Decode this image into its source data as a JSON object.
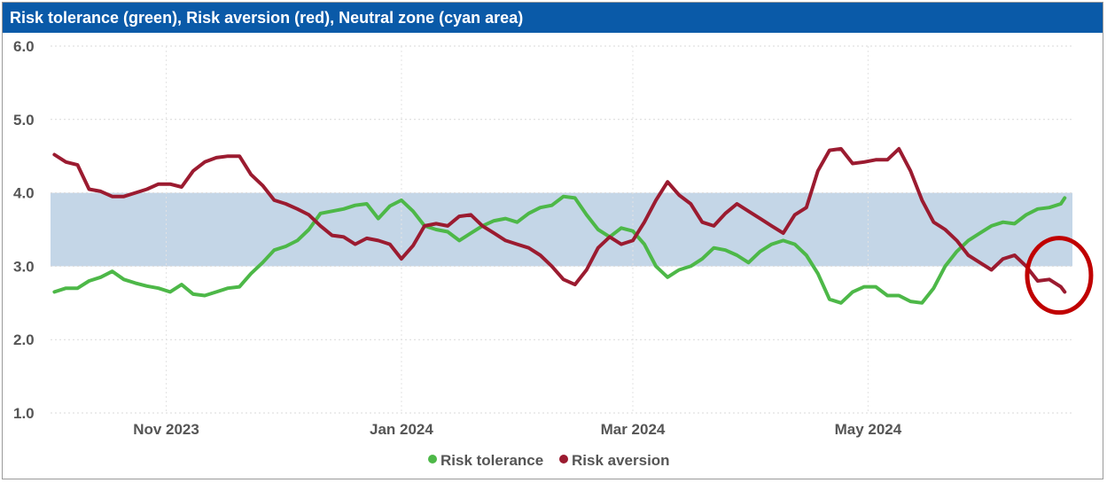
{
  "title": "Risk tolerance (green), Risk aversion (red), Neutral zone (cyan area)",
  "colors": {
    "title_bg": "#0a5aa8",
    "tolerance": "#4db848",
    "aversion": "#9b1b30",
    "neutral_zone": "#c4d6e7",
    "highlight_circle": "#c00000"
  },
  "chart_data": {
    "type": "line",
    "title": "Risk tolerance (green), Risk aversion (red), Neutral zone (cyan area)",
    "xlim": [
      "2023-10-02",
      "2024-06-23"
    ],
    "ylim": [
      1.0,
      6.0
    ],
    "y_ticks": [
      "6.0",
      "5.0",
      "4.0",
      "3.0",
      "2.0",
      "1.0"
    ],
    "y_tick_values": [
      6,
      5,
      4,
      3,
      2,
      1
    ],
    "x_ticks": [
      {
        "label": "Nov 2023",
        "date": "2023-11-01"
      },
      {
        "label": "Jan 2024",
        "date": "2024-01-01"
      },
      {
        "label": "Mar 2024",
        "date": "2024-03-01"
      },
      {
        "label": "May 2024",
        "date": "2024-05-01"
      }
    ],
    "grid": true,
    "legend_position": "bottom-center",
    "neutral_zone": [
      3.0,
      4.0
    ],
    "annotation": {
      "shape": "circle",
      "date": "2024-06-20",
      "value": 2.9
    },
    "series": [
      {
        "name": "Risk tolerance",
        "color": "#4db848",
        "points": [
          [
            "2023-10-03",
            2.65
          ],
          [
            "2023-10-06",
            2.7
          ],
          [
            "2023-10-09",
            2.7
          ],
          [
            "2023-10-12",
            2.8
          ],
          [
            "2023-10-15",
            2.85
          ],
          [
            "2023-10-18",
            2.93
          ],
          [
            "2023-10-21",
            2.82
          ],
          [
            "2023-10-24",
            2.77
          ],
          [
            "2023-10-27",
            2.73
          ],
          [
            "2023-10-30",
            2.7
          ],
          [
            "2023-11-02",
            2.65
          ],
          [
            "2023-11-05",
            2.75
          ],
          [
            "2023-11-08",
            2.62
          ],
          [
            "2023-11-11",
            2.6
          ],
          [
            "2023-11-14",
            2.65
          ],
          [
            "2023-11-17",
            2.7
          ],
          [
            "2023-11-20",
            2.72
          ],
          [
            "2023-11-23",
            2.9
          ],
          [
            "2023-11-26",
            3.05
          ],
          [
            "2023-11-29",
            3.22
          ],
          [
            "2023-12-02",
            3.27
          ],
          [
            "2023-12-05",
            3.35
          ],
          [
            "2023-12-08",
            3.5
          ],
          [
            "2023-12-11",
            3.72
          ],
          [
            "2023-12-14",
            3.75
          ],
          [
            "2023-12-17",
            3.78
          ],
          [
            "2023-12-20",
            3.83
          ],
          [
            "2023-12-23",
            3.85
          ],
          [
            "2023-12-26",
            3.65
          ],
          [
            "2023-12-29",
            3.82
          ],
          [
            "2024-01-01",
            3.9
          ],
          [
            "2024-01-04",
            3.75
          ],
          [
            "2024-01-07",
            3.55
          ],
          [
            "2024-01-10",
            3.5
          ],
          [
            "2024-01-13",
            3.47
          ],
          [
            "2024-01-16",
            3.35
          ],
          [
            "2024-01-19",
            3.45
          ],
          [
            "2024-01-22",
            3.55
          ],
          [
            "2024-01-25",
            3.62
          ],
          [
            "2024-01-28",
            3.65
          ],
          [
            "2024-01-31",
            3.6
          ],
          [
            "2024-02-03",
            3.72
          ],
          [
            "2024-02-06",
            3.8
          ],
          [
            "2024-02-09",
            3.83
          ],
          [
            "2024-02-12",
            3.95
          ],
          [
            "2024-02-15",
            3.93
          ],
          [
            "2024-02-18",
            3.7
          ],
          [
            "2024-02-21",
            3.5
          ],
          [
            "2024-02-24",
            3.4
          ],
          [
            "2024-02-27",
            3.52
          ],
          [
            "2024-03-01",
            3.48
          ],
          [
            "2024-03-04",
            3.3
          ],
          [
            "2024-03-07",
            3.0
          ],
          [
            "2024-03-10",
            2.85
          ],
          [
            "2024-03-13",
            2.95
          ],
          [
            "2024-03-16",
            3.0
          ],
          [
            "2024-03-19",
            3.1
          ],
          [
            "2024-03-22",
            3.25
          ],
          [
            "2024-03-25",
            3.22
          ],
          [
            "2024-03-28",
            3.15
          ],
          [
            "2024-03-31",
            3.05
          ],
          [
            "2024-04-03",
            3.2
          ],
          [
            "2024-04-06",
            3.3
          ],
          [
            "2024-04-09",
            3.35
          ],
          [
            "2024-04-12",
            3.3
          ],
          [
            "2024-04-15",
            3.15
          ],
          [
            "2024-04-18",
            2.9
          ],
          [
            "2024-04-21",
            2.55
          ],
          [
            "2024-04-24",
            2.5
          ],
          [
            "2024-04-27",
            2.65
          ],
          [
            "2024-04-30",
            2.72
          ],
          [
            "2024-05-03",
            2.72
          ],
          [
            "2024-05-06",
            2.6
          ],
          [
            "2024-05-09",
            2.6
          ],
          [
            "2024-05-12",
            2.52
          ],
          [
            "2024-05-15",
            2.5
          ],
          [
            "2024-05-18",
            2.7
          ],
          [
            "2024-05-21",
            3.0
          ],
          [
            "2024-05-24",
            3.2
          ],
          [
            "2024-05-27",
            3.35
          ],
          [
            "2024-05-30",
            3.45
          ],
          [
            "2024-06-02",
            3.55
          ],
          [
            "2024-06-05",
            3.6
          ],
          [
            "2024-06-08",
            3.58
          ],
          [
            "2024-06-11",
            3.7
          ],
          [
            "2024-06-14",
            3.78
          ],
          [
            "2024-06-17",
            3.8
          ],
          [
            "2024-06-20",
            3.85
          ],
          [
            "2024-06-21",
            3.93
          ]
        ]
      },
      {
        "name": "Risk aversion",
        "color": "#9b1b30",
        "points": [
          [
            "2023-10-03",
            4.52
          ],
          [
            "2023-10-06",
            4.42
          ],
          [
            "2023-10-09",
            4.38
          ],
          [
            "2023-10-12",
            4.05
          ],
          [
            "2023-10-15",
            4.02
          ],
          [
            "2023-10-18",
            3.95
          ],
          [
            "2023-10-21",
            3.95
          ],
          [
            "2023-10-24",
            4.0
          ],
          [
            "2023-10-27",
            4.05
          ],
          [
            "2023-10-30",
            4.12
          ],
          [
            "2023-11-02",
            4.12
          ],
          [
            "2023-11-05",
            4.08
          ],
          [
            "2023-11-08",
            4.3
          ],
          [
            "2023-11-11",
            4.42
          ],
          [
            "2023-11-14",
            4.48
          ],
          [
            "2023-11-17",
            4.5
          ],
          [
            "2023-11-20",
            4.5
          ],
          [
            "2023-11-23",
            4.25
          ],
          [
            "2023-11-26",
            4.1
          ],
          [
            "2023-11-29",
            3.9
          ],
          [
            "2023-12-02",
            3.85
          ],
          [
            "2023-12-05",
            3.78
          ],
          [
            "2023-12-08",
            3.7
          ],
          [
            "2023-12-11",
            3.55
          ],
          [
            "2023-12-14",
            3.42
          ],
          [
            "2023-12-17",
            3.4
          ],
          [
            "2023-12-20",
            3.3
          ],
          [
            "2023-12-23",
            3.38
          ],
          [
            "2023-12-26",
            3.35
          ],
          [
            "2023-12-29",
            3.3
          ],
          [
            "2024-01-01",
            3.1
          ],
          [
            "2024-01-04",
            3.28
          ],
          [
            "2024-01-07",
            3.55
          ],
          [
            "2024-01-10",
            3.58
          ],
          [
            "2024-01-13",
            3.55
          ],
          [
            "2024-01-16",
            3.68
          ],
          [
            "2024-01-19",
            3.7
          ],
          [
            "2024-01-22",
            3.55
          ],
          [
            "2024-01-25",
            3.45
          ],
          [
            "2024-01-28",
            3.35
          ],
          [
            "2024-01-31",
            3.3
          ],
          [
            "2024-02-03",
            3.25
          ],
          [
            "2024-02-06",
            3.15
          ],
          [
            "2024-02-09",
            3.0
          ],
          [
            "2024-02-12",
            2.82
          ],
          [
            "2024-02-15",
            2.75
          ],
          [
            "2024-02-18",
            2.95
          ],
          [
            "2024-02-21",
            3.25
          ],
          [
            "2024-02-24",
            3.4
          ],
          [
            "2024-02-27",
            3.3
          ],
          [
            "2024-03-01",
            3.35
          ],
          [
            "2024-03-04",
            3.6
          ],
          [
            "2024-03-07",
            3.9
          ],
          [
            "2024-03-10",
            4.15
          ],
          [
            "2024-03-13",
            3.97
          ],
          [
            "2024-03-16",
            3.85
          ],
          [
            "2024-03-19",
            3.6
          ],
          [
            "2024-03-22",
            3.55
          ],
          [
            "2024-03-25",
            3.72
          ],
          [
            "2024-03-28",
            3.85
          ],
          [
            "2024-03-31",
            3.75
          ],
          [
            "2024-04-03",
            3.65
          ],
          [
            "2024-04-06",
            3.55
          ],
          [
            "2024-04-09",
            3.45
          ],
          [
            "2024-04-12",
            3.7
          ],
          [
            "2024-04-15",
            3.8
          ],
          [
            "2024-04-18",
            4.3
          ],
          [
            "2024-04-21",
            4.58
          ],
          [
            "2024-04-24",
            4.6
          ],
          [
            "2024-04-27",
            4.4
          ],
          [
            "2024-04-30",
            4.42
          ],
          [
            "2024-05-03",
            4.45
          ],
          [
            "2024-05-06",
            4.45
          ],
          [
            "2024-05-09",
            4.6
          ],
          [
            "2024-05-12",
            4.3
          ],
          [
            "2024-05-15",
            3.9
          ],
          [
            "2024-05-18",
            3.6
          ],
          [
            "2024-05-21",
            3.5
          ],
          [
            "2024-05-24",
            3.35
          ],
          [
            "2024-05-27",
            3.15
          ],
          [
            "2024-05-30",
            3.05
          ],
          [
            "2024-06-02",
            2.95
          ],
          [
            "2024-06-05",
            3.1
          ],
          [
            "2024-06-08",
            3.15
          ],
          [
            "2024-06-11",
            3.0
          ],
          [
            "2024-06-14",
            2.8
          ],
          [
            "2024-06-17",
            2.82
          ],
          [
            "2024-06-20",
            2.72
          ],
          [
            "2024-06-21",
            2.65
          ]
        ]
      }
    ]
  }
}
